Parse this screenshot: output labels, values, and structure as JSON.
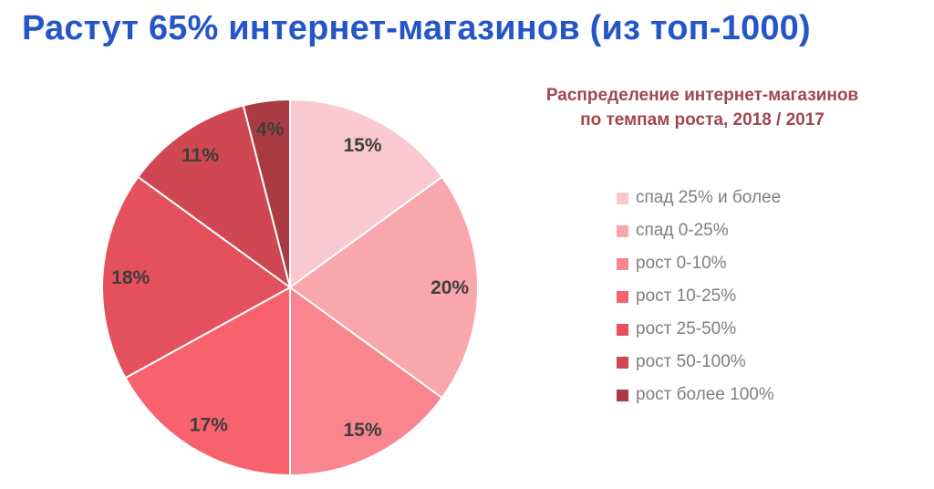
{
  "page_title": "Растут 65% интернет-магазинов (из топ-1000)",
  "colors": {
    "page_title": "#2456c8",
    "chart_title": "#a0474d",
    "legend_text": "#7f7f7f",
    "data_label": "#3d3d3d",
    "background": "#ffffff"
  },
  "chart_data": {
    "type": "pie",
    "title": "Распределение интернет-магазинов по темпам роста, 2018 / 2017",
    "title_lines": [
      "Распределение интернет-магазинов",
      "по темпам роста, 2018 / 2017"
    ],
    "legend_position": "right",
    "start_angle_deg": 0,
    "direction": "clockwise",
    "slices": [
      {
        "label": "спад 25% и более",
        "value": 15,
        "color": "#f9c9cf"
      },
      {
        "label": "спад 0-25%",
        "value": 20,
        "color": "#f9a6ad"
      },
      {
        "label": "рост 0-10%",
        "value": 15,
        "color": "#f9858e"
      },
      {
        "label": "рост 10-25%",
        "value": 17,
        "color": "#f8626d"
      },
      {
        "label": "рост 25-50%",
        "value": 18,
        "color": "#e4505b"
      },
      {
        "label": "рост 50-100%",
        "value": 11,
        "color": "#cf4750"
      },
      {
        "label": "рост более 100%",
        "value": 4,
        "color": "#aa3b42"
      }
    ],
    "data_labels": [
      "15%",
      "20%",
      "15%",
      "17%",
      "18%",
      "11%",
      "4%"
    ]
  }
}
